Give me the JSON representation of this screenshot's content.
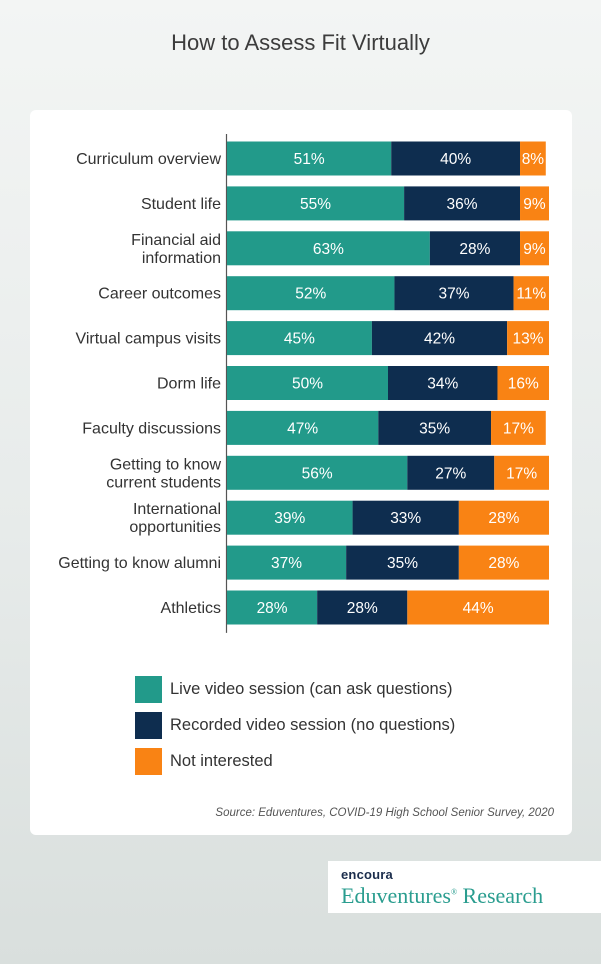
{
  "title": "How to Assess Fit Virtually",
  "colors": {
    "live": "#229a8a",
    "recorded": "#0e2d4f",
    "not_interested": "#f98314"
  },
  "legend": [
    {
      "label": "Live video session (can ask questions)",
      "color": "#229a8a"
    },
    {
      "label": "Recorded video session (no questions)",
      "color": "#0e2d4f"
    },
    {
      "label": "Not interested",
      "color": "#f98314"
    }
  ],
  "source": "Source: Eduventures, COVID-19 High School Senior Survey, 2020",
  "brand": {
    "top": "encoura",
    "main": "Eduventures",
    "suffix": "Research"
  },
  "chart_data": {
    "type": "bar",
    "orientation": "horizontal",
    "stacked": true,
    "value_suffix": "%",
    "categories": [
      "Curriculum overview",
      "Student life",
      "Financial aid\ninformation",
      "Career outcomes",
      "Virtual campus visits",
      "Dorm life",
      "Faculty discussions",
      "Getting to know\ncurrent students",
      "International\nopportunities",
      "Getting to know alumni",
      "Athletics"
    ],
    "series": [
      {
        "name": "Live video session (can ask questions)",
        "values": [
          51,
          55,
          63,
          52,
          45,
          50,
          47,
          56,
          39,
          37,
          28
        ]
      },
      {
        "name": "Recorded video session (no questions)",
        "values": [
          40,
          36,
          28,
          37,
          42,
          34,
          35,
          27,
          33,
          35,
          28
        ]
      },
      {
        "name": "Not interested",
        "values": [
          8,
          9,
          9,
          11,
          13,
          16,
          17,
          17,
          28,
          28,
          44
        ]
      }
    ],
    "xlim": [
      0,
      100
    ],
    "legend_position": "bottom",
    "grid": false
  }
}
